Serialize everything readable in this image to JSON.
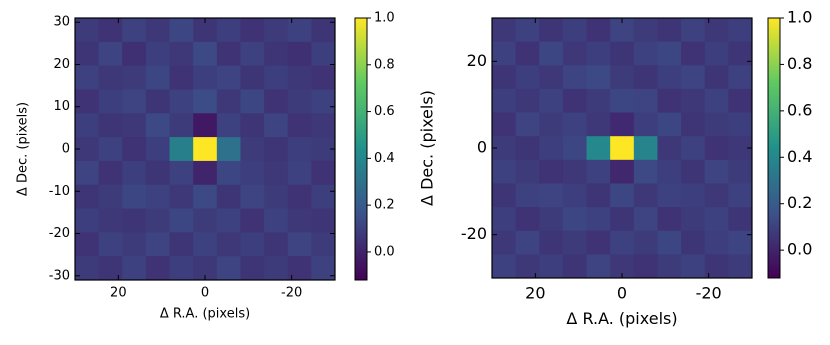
{
  "chart_data": [
    {
      "type": "heatmap",
      "colormap": "viridis",
      "xlabel": "Δ R.A. (pixels)",
      "ylabel": "Δ Dec. (pixels)",
      "xlim": [
        30,
        -30
      ],
      "ylim": [
        -31,
        31
      ],
      "xticks": [
        20,
        0,
        -20
      ],
      "yticks": [
        -30,
        -20,
        -10,
        0,
        10,
        20,
        30
      ],
      "clim": [
        -0.12,
        1
      ],
      "cticks": [
        {
          "value": 0,
          "label": "0.0"
        },
        0.2,
        0.4,
        0.6,
        0.8,
        {
          "value": 1,
          "label": "1.0"
        }
      ],
      "z": [
        [
          0.08,
          0.05,
          0.1,
          0.07,
          0.12,
          0.06,
          0.09,
          0.05,
          0.08,
          0.1,
          0.06
        ],
        [
          0.06,
          0.11,
          0.04,
          0.09,
          0.07,
          0.13,
          0.05,
          0.1,
          0.06,
          0.04,
          0.09
        ],
        [
          0.1,
          0.07,
          0.08,
          0.12,
          0.05,
          0.09,
          0.11,
          0.06,
          0.09,
          0.07,
          0.05
        ],
        [
          0.05,
          0.09,
          0.11,
          0.06,
          0.1,
          0.14,
          0.07,
          0.12,
          0.05,
          0.08,
          0.1
        ],
        [
          0.09,
          0.06,
          0.07,
          0.13,
          0.08,
          -0.04,
          0.1,
          0.06,
          0.11,
          0.05,
          0.07
        ],
        [
          0.07,
          0.1,
          0.05,
          0.09,
          0.36,
          1.0,
          0.3,
          0.08,
          0.06,
          0.09,
          0.08
        ],
        [
          0.11,
          0.05,
          0.09,
          0.06,
          0.1,
          0.0,
          0.12,
          0.09,
          0.07,
          0.1,
          0.05
        ],
        [
          0.06,
          0.08,
          0.12,
          0.1,
          0.07,
          0.13,
          0.06,
          0.11,
          0.08,
          0.05,
          0.09
        ],
        [
          0.09,
          0.07,
          0.06,
          0.08,
          0.12,
          0.08,
          0.1,
          0.05,
          0.1,
          0.07,
          0.06
        ],
        [
          0.05,
          0.1,
          0.08,
          0.11,
          0.06,
          0.1,
          0.07,
          0.09,
          0.06,
          0.11,
          0.08
        ],
        [
          0.08,
          0.06,
          0.1,
          0.05,
          0.09,
          0.07,
          0.11,
          0.06,
          0.08,
          0.05,
          0.1
        ]
      ]
    },
    {
      "type": "heatmap",
      "colormap": "viridis",
      "xlabel": "Δ R.A. (pixels)",
      "ylabel": "Δ Dec. (pixels)",
      "xlim": [
        30,
        -30
      ],
      "ylim": [
        -30,
        30
      ],
      "xticks": [
        20,
        0,
        -20
      ],
      "yticks": [
        -20,
        0,
        20
      ],
      "clim": [
        -0.12,
        1
      ],
      "cticks": [
        {
          "value": 0,
          "label": "0.0"
        },
        0.2,
        0.4,
        0.6,
        0.8,
        {
          "value": 1,
          "label": "1.0"
        }
      ],
      "z": [
        [
          0.07,
          0.1,
          0.06,
          0.09,
          0.05,
          0.11,
          0.08,
          0.06,
          0.1,
          0.07,
          0.09
        ],
        [
          0.1,
          0.05,
          0.12,
          0.07,
          0.09,
          0.06,
          0.1,
          0.12,
          0.05,
          0.09,
          0.06
        ],
        [
          0.06,
          0.09,
          0.07,
          0.11,
          0.13,
          0.08,
          0.06,
          0.09,
          0.11,
          0.06,
          0.1
        ],
        [
          0.09,
          0.07,
          0.1,
          0.05,
          0.08,
          0.12,
          0.11,
          0.05,
          0.07,
          0.1,
          0.05
        ],
        [
          0.05,
          0.11,
          0.08,
          0.1,
          0.07,
          0.02,
          0.09,
          0.12,
          0.06,
          0.08,
          0.09
        ],
        [
          0.08,
          0.06,
          0.09,
          0.12,
          0.4,
          1.0,
          0.38,
          0.07,
          0.1,
          0.05,
          0.07
        ],
        [
          0.1,
          0.08,
          0.05,
          0.07,
          0.1,
          0.01,
          0.13,
          0.09,
          0.06,
          0.11,
          0.08
        ],
        [
          0.06,
          0.1,
          0.11,
          0.09,
          0.06,
          0.12,
          0.07,
          0.1,
          0.09,
          0.07,
          0.1
        ],
        [
          0.09,
          0.05,
          0.08,
          0.12,
          0.1,
          0.06,
          0.11,
          0.05,
          0.08,
          0.1,
          0.06
        ],
        [
          0.07,
          0.11,
          0.06,
          0.08,
          0.05,
          0.1,
          0.08,
          0.12,
          0.06,
          0.09,
          0.11
        ],
        [
          0.1,
          0.07,
          0.09,
          0.06,
          0.11,
          0.07,
          0.05,
          0.08,
          0.1,
          0.06,
          0.08
        ]
      ]
    }
  ]
}
